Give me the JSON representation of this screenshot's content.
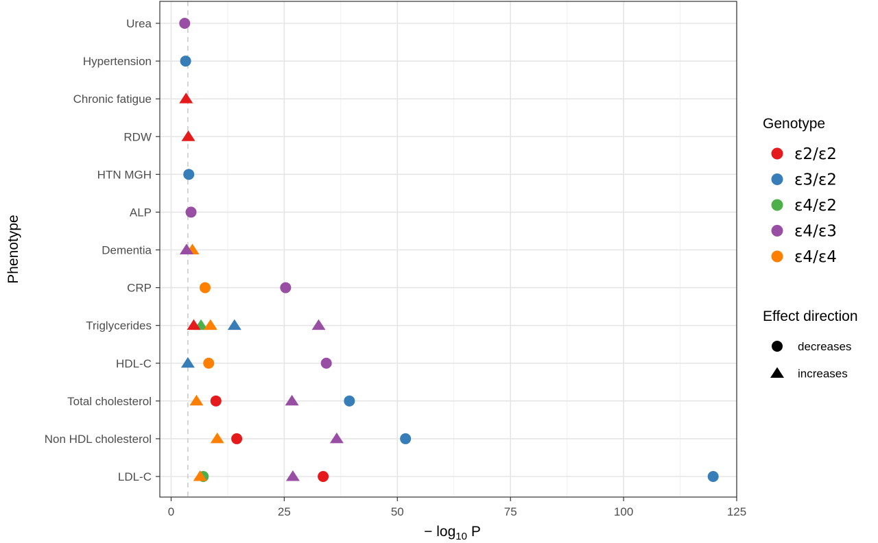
{
  "chart_data": {
    "type": "scatter",
    "xlabel": "− log10 P",
    "xlabel_parts": {
      "prefix": "− log",
      "subscript": "10",
      "suffix": " P"
    },
    "ylabel": "Phenotype",
    "xlim": [
      -2.5,
      125
    ],
    "xticks": [
      0,
      25,
      50,
      75,
      100,
      125
    ],
    "threshold_line": 3.7,
    "categories": [
      "Urea",
      "Hypertension",
      "Chronic fatigue",
      "RDW",
      "HTN MGH",
      "ALP",
      "Dementia",
      "CRP",
      "Triglycerides",
      "HDL-C",
      "Total cholesterol",
      "Non HDL cholesterol",
      "LDL-C"
    ],
    "grid": true,
    "legend_placement": "right",
    "genotype_legend": {
      "title": "Genotype",
      "entries": [
        {
          "label": "ε2/ε2",
          "color": "#e41a1c"
        },
        {
          "label": "ε3/ε2",
          "color": "#377eb8"
        },
        {
          "label": "ε4/ε2",
          "color": "#4daf4a"
        },
        {
          "label": "ε4/ε3",
          "color": "#984ea3"
        },
        {
          "label": "ε4/ε4",
          "color": "#ff7f00"
        }
      ]
    },
    "direction_legend": {
      "title": "Effect direction",
      "entries": [
        {
          "label": "decreases",
          "shape": "circle"
        },
        {
          "label": "increases",
          "shape": "triangle"
        }
      ]
    },
    "points": [
      {
        "phenotype": "Urea",
        "genotype": "ε4/ε3",
        "x": 3.0,
        "direction": "decreases"
      },
      {
        "phenotype": "Hypertension",
        "genotype": "ε3/ε2",
        "x": 3.2,
        "direction": "decreases"
      },
      {
        "phenotype": "Chronic fatigue",
        "genotype": "ε2/ε2",
        "x": 3.3,
        "direction": "increases"
      },
      {
        "phenotype": "RDW",
        "genotype": "ε2/ε2",
        "x": 3.8,
        "direction": "increases"
      },
      {
        "phenotype": "HTN MGH",
        "genotype": "ε3/ε2",
        "x": 3.9,
        "direction": "decreases"
      },
      {
        "phenotype": "ALP",
        "genotype": "ε4/ε3",
        "x": 4.4,
        "direction": "decreases"
      },
      {
        "phenotype": "Dementia",
        "genotype": "ε4/ε4",
        "x": 4.7,
        "direction": "increases"
      },
      {
        "phenotype": "Dementia",
        "genotype": "ε4/ε3",
        "x": 3.4,
        "direction": "increases"
      },
      {
        "phenotype": "CRP",
        "genotype": "ε4/ε4",
        "x": 7.5,
        "direction": "decreases"
      },
      {
        "phenotype": "CRP",
        "genotype": "ε4/ε3",
        "x": 25.3,
        "direction": "decreases"
      },
      {
        "phenotype": "Triglycerides",
        "genotype": "ε4/ε2",
        "x": 6.6,
        "direction": "increases"
      },
      {
        "phenotype": "Triglycerides",
        "genotype": "ε2/ε2",
        "x": 5.0,
        "direction": "increases"
      },
      {
        "phenotype": "Triglycerides",
        "genotype": "ε4/ε4",
        "x": 8.7,
        "direction": "increases"
      },
      {
        "phenotype": "Triglycerides",
        "genotype": "ε3/ε2",
        "x": 14.0,
        "direction": "increases"
      },
      {
        "phenotype": "Triglycerides",
        "genotype": "ε4/ε3",
        "x": 32.6,
        "direction": "increases"
      },
      {
        "phenotype": "HDL-C",
        "genotype": "ε3/ε2",
        "x": 3.7,
        "direction": "increases"
      },
      {
        "phenotype": "HDL-C",
        "genotype": "ε4/ε4",
        "x": 8.3,
        "direction": "decreases"
      },
      {
        "phenotype": "HDL-C",
        "genotype": "ε4/ε3",
        "x": 34.3,
        "direction": "decreases"
      },
      {
        "phenotype": "Total cholesterol",
        "genotype": "ε4/ε4",
        "x": 5.6,
        "direction": "increases"
      },
      {
        "phenotype": "Total cholesterol",
        "genotype": "ε2/ε2",
        "x": 9.9,
        "direction": "decreases"
      },
      {
        "phenotype": "Total cholesterol",
        "genotype": "ε4/ε3",
        "x": 26.7,
        "direction": "increases"
      },
      {
        "phenotype": "Total cholesterol",
        "genotype": "ε3/ε2",
        "x": 39.4,
        "direction": "decreases"
      },
      {
        "phenotype": "Non HDL cholesterol",
        "genotype": "ε4/ε4",
        "x": 10.2,
        "direction": "increases"
      },
      {
        "phenotype": "Non HDL cholesterol",
        "genotype": "ε2/ε2",
        "x": 14.5,
        "direction": "decreases"
      },
      {
        "phenotype": "Non HDL cholesterol",
        "genotype": "ε4/ε3",
        "x": 36.6,
        "direction": "increases"
      },
      {
        "phenotype": "Non HDL cholesterol",
        "genotype": "ε3/ε2",
        "x": 51.8,
        "direction": "decreases"
      },
      {
        "phenotype": "LDL-C",
        "genotype": "ε4/ε2",
        "x": 7.1,
        "direction": "decreases"
      },
      {
        "phenotype": "LDL-C",
        "genotype": "ε4/ε4",
        "x": 6.4,
        "direction": "increases"
      },
      {
        "phenotype": "LDL-C",
        "genotype": "ε4/ε3",
        "x": 26.9,
        "direction": "increases"
      },
      {
        "phenotype": "LDL-C",
        "genotype": "ε2/ε2",
        "x": 33.6,
        "direction": "decreases"
      },
      {
        "phenotype": "LDL-C",
        "genotype": "ε3/ε2",
        "x": 119.8,
        "direction": "decreases"
      }
    ]
  }
}
